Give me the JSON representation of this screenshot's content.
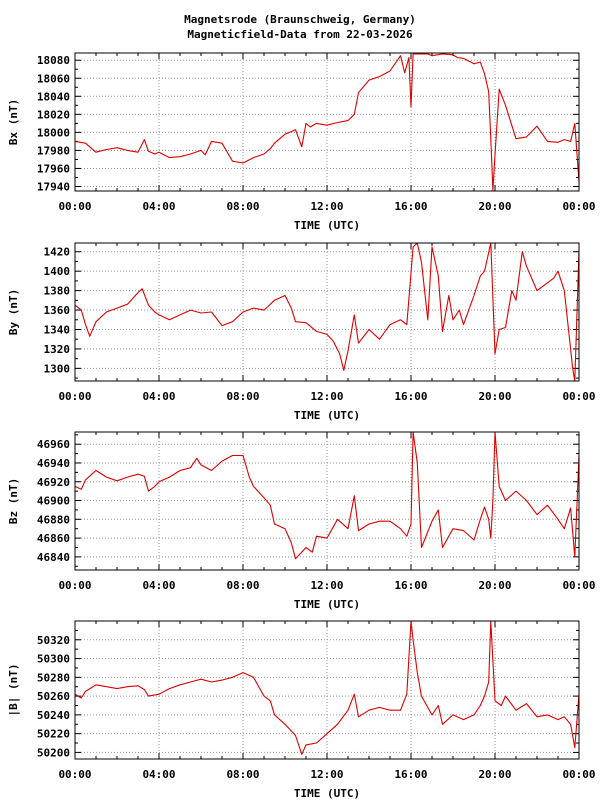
{
  "page": {
    "title": "Magnetsrode (Braunschweig, Germany)",
    "subtitle": "Magneticfield-Data from 22-03-2026"
  },
  "colors": {
    "series": "#dd0000",
    "grid": "#999999",
    "axis": "#000000",
    "background": "#ffffff"
  },
  "chart_data": [
    {
      "type": "line",
      "title": "",
      "xlabel": "TIME (UTC)",
      "ylabel": "Bx (nT)",
      "xlim": [
        0,
        24
      ],
      "ylim": [
        17935,
        18088
      ],
      "x_ticks": [
        "00:00",
        "04:00",
        "08:00",
        "12:00",
        "16:00",
        "20:00",
        "00:00"
      ],
      "y_ticks": [
        17940,
        17960,
        17980,
        18000,
        18020,
        18040,
        18060,
        18080
      ],
      "grid": true,
      "series": [
        {
          "x": [
            0,
            0.5,
            1,
            1.5,
            2,
            2.5,
            3,
            3.3,
            3.5,
            3.8,
            4,
            4.5,
            5,
            5.5,
            6,
            6.2,
            6.5,
            7,
            7.3,
            7.5,
            8,
            8.5,
            9,
            9.3,
            9.5,
            10,
            10.5,
            10.8,
            11,
            11.2,
            11.5,
            12,
            12.5,
            13,
            13.3,
            13.5,
            14,
            14.5,
            15,
            15.5,
            15.7,
            15.9,
            16,
            16.1,
            16.3,
            16.5,
            16.8,
            17,
            17.5,
            18,
            18.2,
            18.5,
            19,
            19.3,
            19.5,
            19.7,
            19.8,
            19.9,
            20,
            20.2,
            20.5,
            21,
            21.5,
            22,
            22.5,
            23,
            23.3,
            23.6,
            23.8,
            24
          ],
          "values": [
            17990,
            17988,
            17978,
            17981,
            17983,
            17980,
            17978,
            17992,
            17979,
            17976,
            17978,
            17972,
            17973,
            17976,
            17980,
            17975,
            17990,
            17988,
            17976,
            17968,
            17966,
            17972,
            17976,
            17982,
            17988,
            17998,
            18003,
            17984,
            18010,
            18006,
            18010,
            18008,
            18011,
            18013,
            18020,
            18044,
            18058,
            18062,
            18068,
            18085,
            18066,
            18083,
            18028,
            18087,
            18087,
            18087,
            18087,
            18085,
            18087,
            18086,
            18083,
            18082,
            18076,
            18078,
            18065,
            18045,
            17993,
            17936,
            17975,
            18048,
            18030,
            17993,
            17995,
            18007,
            17990,
            17989,
            17992,
            17990,
            18010,
            17945
          ]
        }
      ]
    },
    {
      "type": "line",
      "title": "",
      "xlabel": "TIME (UTC)",
      "ylabel": "By (nT)",
      "xlim": [
        0,
        24
      ],
      "ylim": [
        1287,
        1429
      ],
      "x_ticks": [
        "00:00",
        "04:00",
        "08:00",
        "12:00",
        "16:00",
        "20:00",
        "00:00"
      ],
      "y_ticks": [
        1300,
        1320,
        1340,
        1360,
        1380,
        1400,
        1420
      ],
      "grid": true,
      "series": [
        {
          "x": [
            0,
            0.3,
            0.5,
            0.7,
            1,
            1.5,
            2,
            2.5,
            3,
            3.2,
            3.5,
            3.8,
            4,
            4.5,
            5,
            5.5,
            6,
            6.5,
            7,
            7.5,
            8,
            8.5,
            9,
            9.5,
            10,
            10.3,
            10.5,
            11,
            11.5,
            12,
            12.3,
            12.6,
            12.8,
            13,
            13.3,
            13.5,
            14,
            14.5,
            15,
            15.5,
            15.8,
            16,
            16.1,
            16.3,
            16.5,
            16.8,
            17,
            17.3,
            17.5,
            17.8,
            18,
            18.3,
            18.5,
            19,
            19.3,
            19.5,
            19.8,
            20,
            20.2,
            20.5,
            20.8,
            21,
            21.3,
            21.5,
            22,
            22.5,
            22.8,
            23,
            23.3,
            23.5,
            23.7,
            23.8,
            24
          ],
          "values": [
            1365,
            1360,
            1345,
            1333,
            1348,
            1358,
            1362,
            1366,
            1378,
            1382,
            1365,
            1358,
            1355,
            1350,
            1355,
            1360,
            1357,
            1358,
            1344,
            1348,
            1358,
            1362,
            1360,
            1370,
            1375,
            1362,
            1348,
            1347,
            1338,
            1335,
            1328,
            1315,
            1298,
            1318,
            1355,
            1326,
            1340,
            1330,
            1345,
            1350,
            1345,
            1398,
            1425,
            1429,
            1409,
            1350,
            1425,
            1395,
            1338,
            1375,
            1350,
            1360,
            1345,
            1375,
            1395,
            1400,
            1429,
            1315,
            1340,
            1342,
            1380,
            1370,
            1420,
            1405,
            1380,
            1388,
            1393,
            1400,
            1380,
            1340,
            1300,
            1287,
            1421
          ]
        }
      ]
    },
    {
      "type": "line",
      "title": "",
      "xlabel": "TIME (UTC)",
      "ylabel": "Bz (nT)",
      "xlim": [
        0,
        24
      ],
      "ylim": [
        46826,
        46973
      ],
      "x_ticks": [
        "00:00",
        "04:00",
        "08:00",
        "12:00",
        "16:00",
        "20:00",
        "00:00"
      ],
      "y_ticks": [
        46840,
        46860,
        46880,
        46900,
        46920,
        46940,
        46960
      ],
      "grid": true,
      "series": [
        {
          "x": [
            0,
            0.3,
            0.5,
            0.8,
            1,
            1.5,
            2,
            2.5,
            3,
            3.3,
            3.5,
            3.8,
            4,
            4.5,
            5,
            5.5,
            5.8,
            6,
            6.5,
            7,
            7.5,
            8,
            8.3,
            8.5,
            9,
            9.3,
            9.5,
            10,
            10.3,
            10.5,
            11,
            11.3,
            11.5,
            12,
            12.5,
            13,
            13.3,
            13.5,
            14,
            14.5,
            15,
            15.5,
            15.8,
            16,
            16.1,
            16.3,
            16.5,
            17,
            17.3,
            17.5,
            18,
            18.5,
            19,
            19.3,
            19.5,
            19.7,
            19.8,
            19.9,
            20,
            20.2,
            20.5,
            21,
            21.5,
            22,
            22.5,
            23,
            23.3,
            23.6,
            23.8,
            24
          ],
          "values": [
            46915,
            46912,
            46922,
            46928,
            46932,
            46925,
            46921,
            46925,
            46928,
            46926,
            46910,
            46915,
            46920,
            46925,
            46932,
            46935,
            46945,
            46938,
            46932,
            46942,
            46948,
            46948,
            46925,
            46915,
            46903,
            46895,
            46875,
            46870,
            46855,
            46838,
            46850,
            46845,
            46862,
            46860,
            46880,
            46870,
            46905,
            46868,
            46875,
            46878,
            46878,
            46870,
            46862,
            46875,
            46973,
            46940,
            46850,
            46878,
            46890,
            46850,
            46870,
            46868,
            46858,
            46880,
            46893,
            46880,
            46860,
            46900,
            46973,
            46915,
            46900,
            46910,
            46900,
            46885,
            46895,
            46880,
            46870,
            46892,
            46840,
            46948
          ]
        }
      ]
    },
    {
      "type": "line",
      "title": "",
      "xlabel": "TIME (UTC)",
      "ylabel": "|B| (nT)",
      "xlim": [
        0,
        24
      ],
      "ylim": [
        50193,
        50340
      ],
      "x_ticks": [
        "00:00",
        "04:00",
        "08:00",
        "12:00",
        "16:00",
        "20:00",
        "00:00"
      ],
      "y_ticks": [
        50200,
        50220,
        50240,
        50260,
        50280,
        50300,
        50320
      ],
      "grid": true,
      "series": [
        {
          "x": [
            0,
            0.3,
            0.5,
            1,
            1.5,
            2,
            2.5,
            3,
            3.3,
            3.5,
            4,
            4.5,
            5,
            5.5,
            6,
            6.5,
            7,
            7.5,
            8,
            8.5,
            9,
            9.3,
            9.5,
            10,
            10.5,
            10.8,
            11,
            11.5,
            12,
            12.5,
            13,
            13.3,
            13.5,
            14,
            14.5,
            15,
            15.5,
            15.8,
            16,
            16.1,
            16.3,
            16.5,
            17,
            17.3,
            17.5,
            18,
            18.5,
            19,
            19.3,
            19.5,
            19.7,
            19.8,
            20,
            20.3,
            20.5,
            21,
            21.5,
            22,
            22.5,
            23,
            23.3,
            23.6,
            23.8,
            24
          ],
          "values": [
            50262,
            50258,
            50265,
            50272,
            50270,
            50268,
            50270,
            50271,
            50267,
            50260,
            50262,
            50268,
            50272,
            50275,
            50278,
            50275,
            50277,
            50280,
            50285,
            50280,
            50260,
            50255,
            50240,
            50230,
            50218,
            50198,
            50208,
            50210,
            50220,
            50230,
            50245,
            50262,
            50238,
            50245,
            50248,
            50245,
            50245,
            50262,
            50340,
            50320,
            50285,
            50260,
            50240,
            50250,
            50230,
            50240,
            50235,
            50240,
            50250,
            50260,
            50275,
            50340,
            50255,
            50250,
            50260,
            50245,
            50252,
            50238,
            50240,
            50235,
            50238,
            50230,
            50205,
            50262
          ]
        }
      ]
    }
  ]
}
